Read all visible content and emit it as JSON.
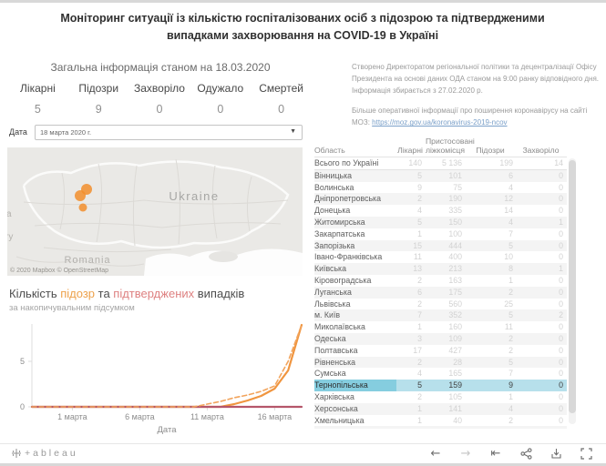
{
  "header": {
    "title": "Моніторинг ситуації із кількістю госпіталізованих осіб з підозрою та підтвердженими випадками захворювання на COVID-19 в Україні"
  },
  "summary": {
    "heading": "Загальна інформація станом на 18.03.2020",
    "kpis": [
      {
        "label": "Лікарні",
        "value": "5"
      },
      {
        "label": "Підозри",
        "value": "9"
      },
      {
        "label": "Захворіло",
        "value": "0"
      },
      {
        "label": "Одужало",
        "value": "0"
      },
      {
        "label": "Смертей",
        "value": "0"
      }
    ]
  },
  "info": {
    "paragraph1": "Створено Директоратом регіональної політики та децентралізації Офісу Президента на основі даних ОДА  станом на 9:00 ранку відповідного дня. Інформація збирається з 27.02.2020 р.",
    "paragraph2": "Більше оперативної інформації про поширення коронавірусу на сайті МОЗ: ",
    "link_text": "https://moz.gov.ua/koronavirus-2019-ncov"
  },
  "date_filter": {
    "label": "Дата",
    "value": "18 марта 2020 г."
  },
  "map": {
    "country_label": "Ukraine",
    "neighbor_label": "Romania",
    "edge_label_top": "a",
    "edge_label_bottom": "ry",
    "attribution": "© 2020 Mapbox © OpenStreetMap",
    "marker_color": "#f28e2b",
    "markers": [
      {
        "x": 87,
        "y": 46,
        "r": 6
      },
      {
        "x": 80,
        "y": 53,
        "r": 6
      },
      {
        "x": 83,
        "y": 66,
        "r": 4.5
      }
    ]
  },
  "chart": {
    "title_p1": "Кількість ",
    "title_p2": "підозр",
    "title_p3": " та ",
    "title_p4": "підтверджених",
    "title_p5": " випадків",
    "subtitle": "за накопичувальним підсумком",
    "xlabel": "Дата"
  },
  "chart_data": {
    "type": "line",
    "title": "Кількість підозр та підтверджених випадків (за накопичувальним підсумком) — Тернопільська",
    "xlabel": "Дата",
    "x_count": 21,
    "x_tick_positions": [
      3,
      8,
      13,
      18
    ],
    "x_tick_labels": [
      "1 марта",
      "6 марта",
      "11 марта",
      "16 марта"
    ],
    "ylim": [
      0,
      10
    ],
    "yticks": [
      0,
      5
    ],
    "grid": false,
    "legend": "none",
    "series": [
      {
        "name": "Підозри (накопичено)",
        "style": "solid",
        "color": "#f0953f",
        "width": 2.2,
        "values": [
          0,
          0,
          0,
          0,
          0,
          0,
          0,
          0,
          0,
          0,
          0,
          0,
          0,
          0,
          0,
          0.3,
          0.7,
          1.2,
          2,
          4,
          9
        ]
      },
      {
        "name": "Підтверджені випадки (накопичено)",
        "style": "solid",
        "color": "#b5566a",
        "width": 2.2,
        "values": [
          0,
          0,
          0,
          0,
          0,
          0,
          0,
          0,
          0,
          0,
          0,
          0,
          0,
          0,
          0,
          0,
          0,
          0,
          0,
          0,
          0
        ]
      },
      {
        "name": "Підозри (тренд)",
        "style": "dashed",
        "color": "#f2a45c",
        "width": 1.6,
        "values": [
          0,
          0,
          0,
          0,
          0,
          0,
          0,
          0,
          0,
          0,
          0,
          0,
          0,
          0.3,
          0.6,
          1,
          1.3,
          1.7,
          2.3,
          5,
          9
        ]
      }
    ]
  },
  "table": {
    "headers": [
      "Область",
      "Лікарні",
      "Пристосовані ліжкомісця",
      "Підозри",
      "Захворіло"
    ],
    "rows": [
      {
        "name": "Всього по Україні",
        "hospitals": "140",
        "beds": "5 136",
        "suspicions": "199",
        "sick": "14"
      },
      {
        "name": "Вінницька",
        "hospitals": "5",
        "beds": "101",
        "suspicions": "6",
        "sick": "0"
      },
      {
        "name": "Волинська",
        "hospitals": "9",
        "beds": "75",
        "suspicions": "4",
        "sick": "0"
      },
      {
        "name": "Дніпропетровська",
        "hospitals": "2",
        "beds": "190",
        "suspicions": "12",
        "sick": "0"
      },
      {
        "name": "Донецька",
        "hospitals": "4",
        "beds": "335",
        "suspicions": "14",
        "sick": "0"
      },
      {
        "name": "Житомирська",
        "hospitals": "5",
        "beds": "150",
        "suspicions": "4",
        "sick": "1"
      },
      {
        "name": "Закарпатська",
        "hospitals": "1",
        "beds": "100",
        "suspicions": "7",
        "sick": "0"
      },
      {
        "name": "Запорізька",
        "hospitals": "15",
        "beds": "444",
        "suspicions": "5",
        "sick": "0"
      },
      {
        "name": "Івано-Франківська",
        "hospitals": "11",
        "beds": "400",
        "suspicions": "10",
        "sick": "0"
      },
      {
        "name": "Київська",
        "hospitals": "13",
        "beds": "213",
        "suspicions": "8",
        "sick": "1"
      },
      {
        "name": "Кіровоградська",
        "hospitals": "2",
        "beds": "163",
        "suspicions": "1",
        "sick": "0"
      },
      {
        "name": "Луганська",
        "hospitals": "6",
        "beds": "175",
        "suspicions": "2",
        "sick": "0"
      },
      {
        "name": "Львівська",
        "hospitals": "2",
        "beds": "560",
        "suspicions": "25",
        "sick": "0"
      },
      {
        "name": "м. Київ",
        "hospitals": "7",
        "beds": "352",
        "suspicions": "5",
        "sick": "2"
      },
      {
        "name": "Миколаївська",
        "hospitals": "1",
        "beds": "160",
        "suspicions": "11",
        "sick": "0"
      },
      {
        "name": "Одеська",
        "hospitals": "3",
        "beds": "109",
        "suspicions": "2",
        "sick": "0"
      },
      {
        "name": "Полтавська",
        "hospitals": "17",
        "beds": "427",
        "suspicions": "2",
        "sick": "0"
      },
      {
        "name": "Рівненська",
        "hospitals": "2",
        "beds": "28",
        "suspicions": "5",
        "sick": "0"
      },
      {
        "name": "Сумська",
        "hospitals": "4",
        "beds": "165",
        "suspicions": "7",
        "sick": "0"
      },
      {
        "name": "Тернопільська",
        "hospitals": "5",
        "beds": "159",
        "suspicions": "9",
        "sick": "0",
        "hl": true
      },
      {
        "name": "Харківська",
        "hospitals": "2",
        "beds": "105",
        "suspicions": "1",
        "sick": "0"
      },
      {
        "name": "Херсонська",
        "hospitals": "1",
        "beds": "141",
        "suspicions": "4",
        "sick": "0"
      },
      {
        "name": "Хмельницька",
        "hospitals": "1",
        "beds": "40",
        "suspicions": "2",
        "sick": "0"
      },
      {
        "name": "",
        "hospitals": "",
        "beds": "",
        "suspicions": "",
        "sick": ""
      }
    ]
  },
  "footer": {
    "logo_text": "+ableau"
  }
}
